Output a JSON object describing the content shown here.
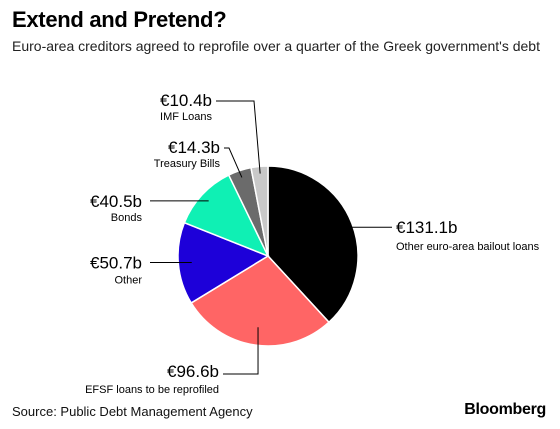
{
  "header": {
    "title": "Extend and Pretend?",
    "subtitle": "Euro-area creditors agreed to reprofile over a quarter of the Greek government's debt"
  },
  "footer": {
    "source": "Source: Public Debt Management Agency",
    "brand": "Bloomberg"
  },
  "chart_data": {
    "type": "pie",
    "title": "Extend and Pretend?",
    "subtitle": "Euro-area creditors agreed to reprofile over a quarter of the Greek government's debt",
    "unit": "€ billions",
    "slices": [
      {
        "label": "Other euro-area bailout loans",
        "value": 131.1,
        "value_label": "€131.1b",
        "color": "#000000"
      },
      {
        "label": "EFSF loans to be reprofiled",
        "value": 96.6,
        "value_label": "€96.6b",
        "color": "#ff6565"
      },
      {
        "label": "Other",
        "value": 50.7,
        "value_label": "€50.7b",
        "color": "#1d00d9"
      },
      {
        "label": "Bonds",
        "value": 40.5,
        "value_label": "€40.5b",
        "color": "#0ff0b4"
      },
      {
        "label": "Treasury Bills",
        "value": 14.3,
        "value_label": "€14.3b",
        "color": "#6b6b6b"
      },
      {
        "label": "IMF Loans",
        "value": 10.4,
        "value_label": "€10.4b",
        "color": "#c8c8c8"
      }
    ],
    "legend": "none (direct labels)"
  }
}
